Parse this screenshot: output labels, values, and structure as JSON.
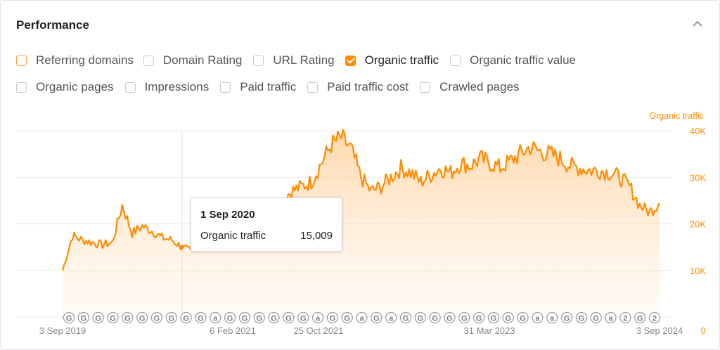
{
  "panel": {
    "title": "Performance",
    "collapse_icon": "chevron-up-icon"
  },
  "metrics_row1": [
    {
      "label": "Referring domains",
      "checked": false
    },
    {
      "label": "Domain Rating",
      "checked": false
    },
    {
      "label": "URL Rating",
      "checked": false
    },
    {
      "label": "Organic traffic",
      "checked": true
    },
    {
      "label": "Organic traffic value",
      "checked": false
    }
  ],
  "metrics_row2": [
    {
      "label": "Organic pages",
      "checked": false
    },
    {
      "label": "Impressions",
      "checked": false
    },
    {
      "label": "Paid traffic",
      "checked": false
    },
    {
      "label": "Paid traffic cost",
      "checked": false
    },
    {
      "label": "Crawled pages",
      "checked": false
    }
  ],
  "tooltip": {
    "date": "1 Sep 2020",
    "label": "Organic traffic",
    "value": "15,009"
  },
  "colors": {
    "accent": "#ff8c00",
    "grid": "#e9e9e9",
    "axis_text": "#888888"
  },
  "chart_data": {
    "type": "area",
    "legend": "Organic traffic",
    "legend_position": "top-right",
    "ylim": [
      0,
      40000
    ],
    "y_ticks": [
      {
        "value": 40000,
        "label": "40K"
      },
      {
        "value": 30000,
        "label": "30K"
      },
      {
        "value": 20000,
        "label": "20K"
      },
      {
        "value": 10000,
        "label": "10K"
      },
      {
        "value": 0,
        "label": "0"
      }
    ],
    "x_ticks": [
      "3 Sep 2019",
      "6 Feb 2021",
      "25 Oct 2021",
      "31 Mar 2023",
      "3 Sep 2024"
    ],
    "x": [
      "2019-09",
      "2019-10",
      "2019-11",
      "2019-12",
      "2020-01",
      "2020-02",
      "2020-03",
      "2020-04",
      "2020-05",
      "2020-06",
      "2020-07",
      "2020-08",
      "2020-09",
      "2020-10",
      "2020-11",
      "2020-12",
      "2021-01",
      "2021-02",
      "2021-03",
      "2021-04",
      "2021-05",
      "2021-06",
      "2021-07",
      "2021-08",
      "2021-09",
      "2021-10",
      "2021-11",
      "2021-12",
      "2022-01",
      "2022-02",
      "2022-03",
      "2022-04",
      "2022-05",
      "2022-06",
      "2022-07",
      "2022-08",
      "2022-09",
      "2022-10",
      "2022-11",
      "2022-12",
      "2023-01",
      "2023-02",
      "2023-03",
      "2023-04",
      "2023-05",
      "2023-06",
      "2023-07",
      "2023-08",
      "2023-09",
      "2023-10",
      "2023-11",
      "2023-12",
      "2024-01",
      "2024-02",
      "2024-03",
      "2024-04",
      "2024-05",
      "2024-06",
      "2024-07",
      "2024-08",
      "2024-09"
    ],
    "values": [
      10000,
      17500,
      16500,
      16000,
      15500,
      16000,
      24000,
      18000,
      19500,
      18500,
      17000,
      16500,
      15009,
      14000,
      16000,
      17000,
      20000,
      20000,
      18500,
      21000,
      22000,
      24000,
      25000,
      27000,
      28000,
      29000,
      33000,
      37000,
      38500,
      36000,
      30000,
      27000,
      28000,
      30000,
      32000,
      31000,
      29000,
      30500,
      32000,
      31000,
      33000,
      32500,
      34000,
      33000,
      32000,
      33500,
      35000,
      36500,
      35500,
      35000,
      34000,
      32500,
      32000,
      31500,
      31500,
      31000,
      30000,
      28000,
      24000,
      22500,
      24500
    ],
    "event_markers": [
      "G",
      "G",
      "G",
      "G",
      "G",
      "G",
      "G",
      "G",
      "G",
      "G",
      "a",
      "G",
      "G",
      "G",
      "G",
      "G",
      "G",
      "a",
      "G",
      "G",
      "a",
      "G",
      "a",
      "G",
      "G",
      "G",
      "G",
      "G",
      "G",
      "G",
      "G",
      "G",
      "a",
      "a",
      "G",
      "G",
      "G",
      "a",
      "2",
      "G",
      "2"
    ]
  }
}
